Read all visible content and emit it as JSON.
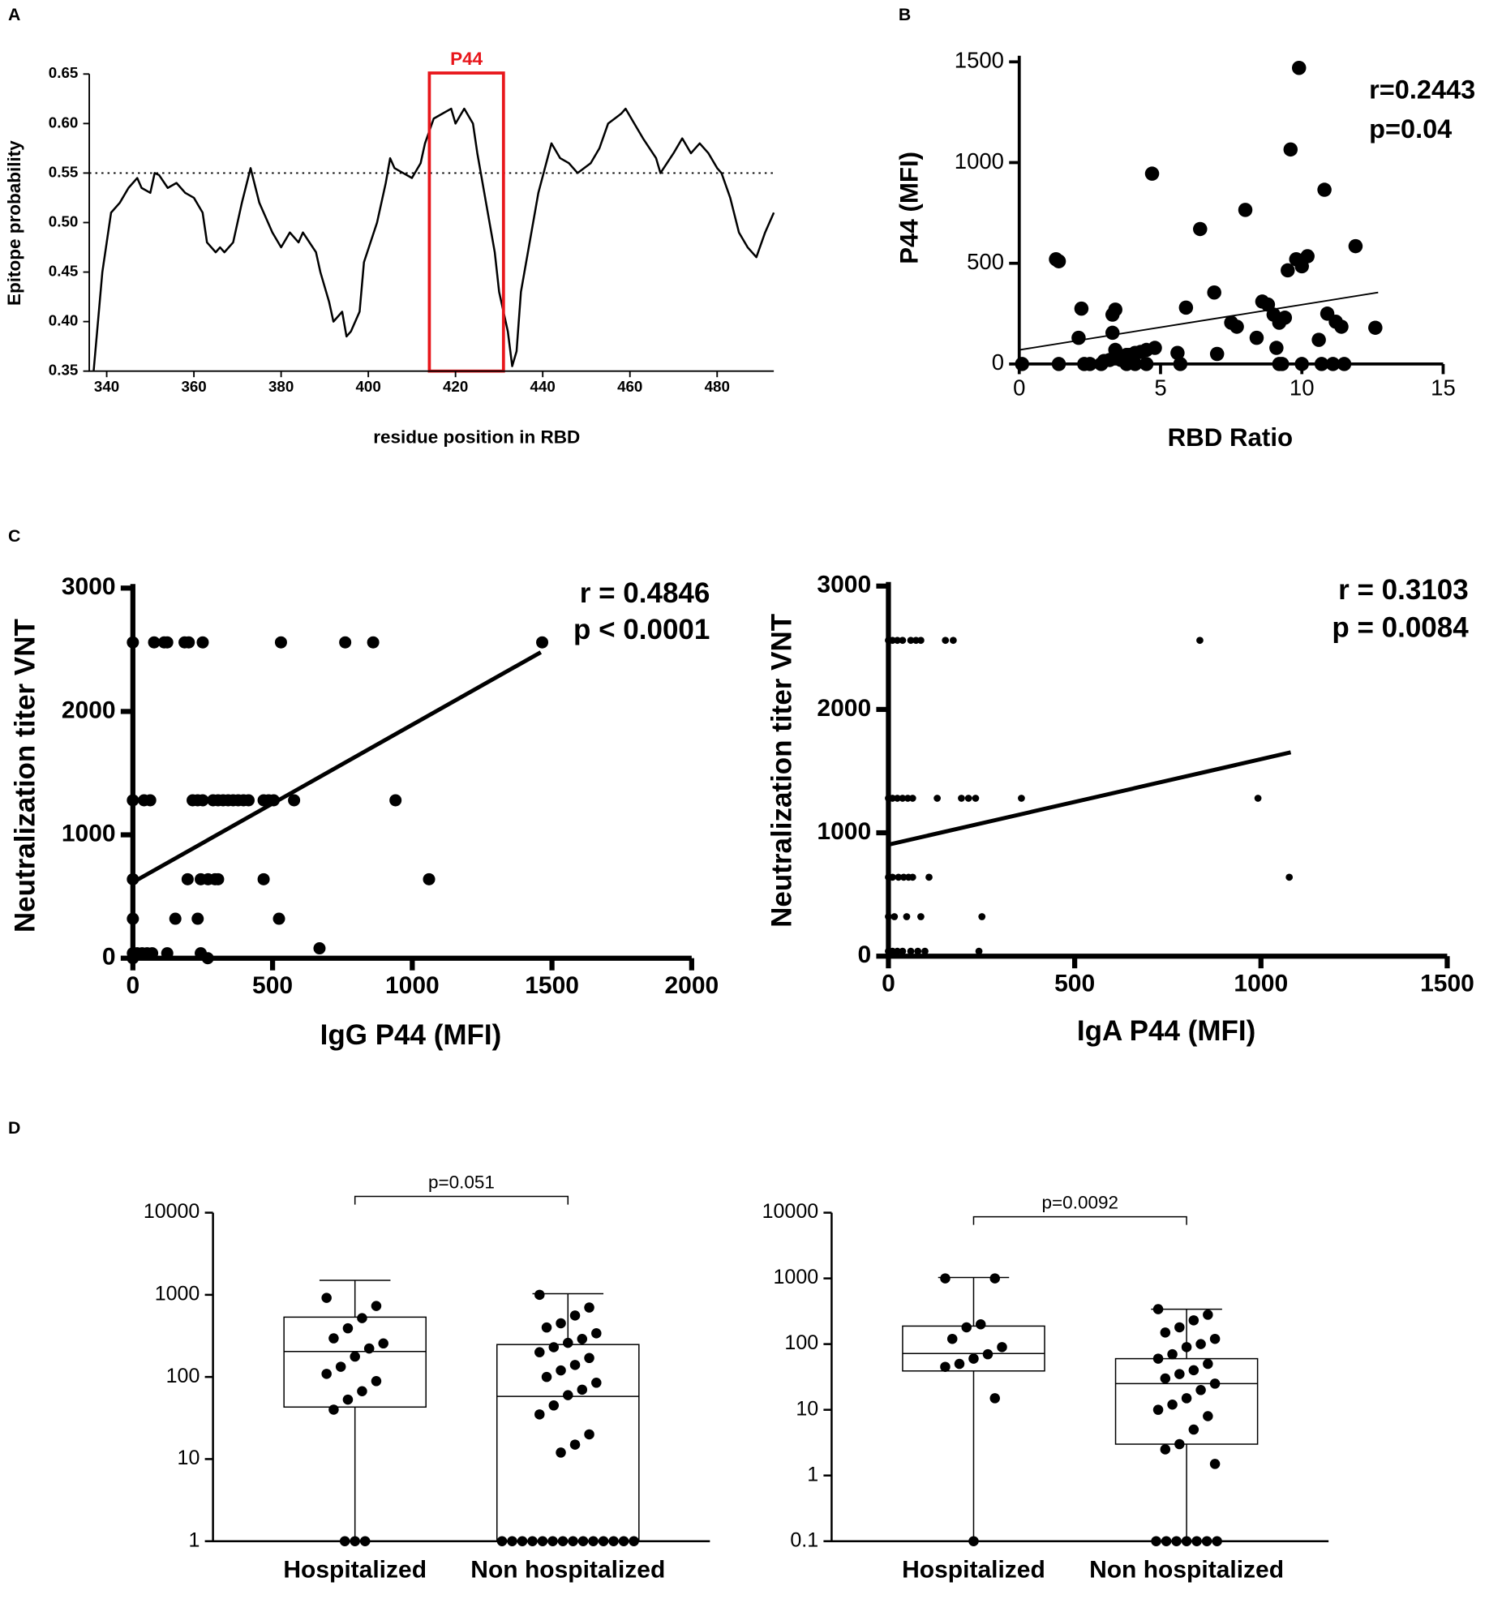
{
  "panel_labels": [
    "A",
    "B",
    "C",
    "D"
  ],
  "chart_data": [
    {
      "type": "line",
      "ylabel": "Epitope probability",
      "xlabel": "residue position in RBD",
      "color": "#000000",
      "x": [
        337,
        339,
        340,
        341,
        343,
        345,
        347,
        348,
        350,
        351,
        352,
        354,
        356,
        358,
        360,
        362,
        363,
        365,
        366,
        367,
        369,
        371,
        373,
        375,
        377,
        378,
        380,
        382,
        384,
        385,
        388,
        389,
        391,
        392,
        394,
        395,
        396,
        398,
        399,
        402,
        404,
        405,
        406,
        408,
        410,
        412,
        413,
        415,
        417,
        419,
        420,
        422,
        424,
        425,
        427,
        429,
        430,
        432,
        433,
        434,
        435,
        437,
        439,
        442,
        444,
        446,
        448,
        451,
        453,
        455,
        458,
        459,
        461,
        463,
        466,
        467,
        470,
        472,
        474,
        476,
        478,
        480,
        481,
        483,
        485,
        487,
        489,
        491,
        493
      ],
      "values": [
        0.35,
        0.45,
        0.48,
        0.51,
        0.52,
        0.535,
        0.545,
        0.535,
        0.53,
        0.55,
        0.548,
        0.535,
        0.54,
        0.53,
        0.525,
        0.51,
        0.48,
        0.47,
        0.475,
        0.47,
        0.48,
        0.52,
        0.555,
        0.52,
        0.5,
        0.49,
        0.475,
        0.49,
        0.48,
        0.49,
        0.47,
        0.45,
        0.42,
        0.4,
        0.41,
        0.385,
        0.39,
        0.41,
        0.46,
        0.5,
        0.54,
        0.565,
        0.555,
        0.55,
        0.545,
        0.56,
        0.58,
        0.605,
        0.61,
        0.615,
        0.6,
        0.615,
        0.6,
        0.57,
        0.52,
        0.47,
        0.43,
        0.39,
        0.355,
        0.37,
        0.43,
        0.48,
        0.53,
        0.58,
        0.565,
        0.56,
        0.55,
        0.56,
        0.575,
        0.6,
        0.61,
        0.615,
        0.6,
        0.585,
        0.565,
        0.55,
        0.57,
        0.585,
        0.57,
        0.58,
        0.57,
        0.555,
        0.55,
        0.525,
        0.49,
        0.475,
        0.465,
        0.49,
        0.51
      ],
      "xlim": [
        336,
        493
      ],
      "xticks": [
        340,
        360,
        380,
        400,
        420,
        440,
        460,
        480
      ],
      "ylim": [
        0.35,
        0.65
      ],
      "yticks": [
        0.35,
        {
          "value": 0.4,
          "label": "0.40"
        },
        0.45,
        {
          "value": 0.5,
          "label": "0.50"
        },
        0.55,
        {
          "value": 0.6,
          "label": "0.60"
        },
        0.65
      ],
      "threshold": 0.55,
      "highlight": {
        "label": "P44",
        "x": [
          414,
          431
        ],
        "color": "#e8161b"
      }
    },
    {
      "type": "scatter",
      "ylabel": "P44 (MFI)",
      "xlabel": "RBD Ratio",
      "color": "#000000",
      "annotations": [
        "r=0.2443",
        "p=0.04"
      ],
      "x": [
        0.1,
        1.3,
        1.4,
        1.4,
        2.1,
        2.2,
        2.3,
        2.5,
        2.9,
        3.0,
        3.2,
        3.3,
        3.4,
        3.3,
        3.4,
        3.6,
        3.8,
        3.9,
        4.1,
        4.3,
        4.5,
        4.8,
        3.8,
        4.1,
        4.5,
        4.7,
        5.6,
        5.7,
        5.9,
        6.4,
        6.9,
        7.0,
        7.5,
        7.7,
        8.0,
        8.4,
        8.6,
        8.8,
        9.0,
        9.1,
        9.2,
        9.3,
        9.2,
        9.4,
        9.5,
        9.6,
        9.8,
        9.9,
        10.0,
        10.0,
        10.2,
        10.6,
        10.7,
        10.8,
        10.9,
        11.1,
        11.5,
        11.2,
        11.4,
        11.9,
        12.6
      ],
      "values": [
        0,
        520,
        510,
        0,
        130,
        275,
        0,
        0,
        0,
        15,
        20,
        245,
        270,
        155,
        70,
        20,
        45,
        45,
        55,
        60,
        70,
        80,
        0,
        0,
        0,
        945,
        55,
        0,
        280,
        670,
        355,
        50,
        205,
        185,
        765,
        130,
        310,
        295,
        245,
        80,
        0,
        0,
        205,
        230,
        465,
        1065,
        520,
        1470,
        0,
        485,
        535,
        120,
        0,
        865,
        250,
        0,
        0,
        210,
        185,
        585,
        180
      ],
      "fit": {
        "x": [
          0,
          12.7
        ],
        "values": [
          70,
          355
        ]
      },
      "xlim": [
        0,
        15
      ],
      "xticks": [
        0,
        5,
        10,
        15
      ],
      "ylim": [
        0,
        1500
      ],
      "yticks": [
        0,
        500,
        1000,
        1500
      ]
    },
    {
      "type": "scatter",
      "ylabel": "Neutralization titer VNT",
      "xlabel": "IgG P44 (MFI)",
      "color": "#000000",
      "annotations": [
        "r = 0.4846",
        "p < 0.0001"
      ],
      "x": [
        0,
        76,
        112,
        123,
        185,
        200,
        250,
        530,
        760,
        860,
        1465,
        0,
        40,
        62,
        214,
        232,
        250,
        287,
        305,
        323,
        341,
        359,
        377,
        396,
        414,
        468,
        486,
        504,
        577,
        940,
        0,
        196,
        243,
        269,
        294,
        305,
        468,
        1060,
        0,
        152,
        232,
        523,
        668,
        0,
        15,
        33,
        51,
        69,
        123,
        243,
        0,
        268
      ],
      "values": [
        2560,
        2560,
        2560,
        2560,
        2560,
        2560,
        2560,
        2560,
        2560,
        2560,
        2560,
        1280,
        1280,
        1280,
        1280,
        1280,
        1280,
        1280,
        1280,
        1280,
        1280,
        1280,
        1280,
        1280,
        1280,
        1280,
        1280,
        1280,
        1280,
        1280,
        640,
        640,
        640,
        640,
        640,
        640,
        640,
        640,
        320,
        320,
        320,
        320,
        80,
        40,
        40,
        40,
        40,
        40,
        40,
        40,
        0,
        0
      ],
      "fit": {
        "x": [
          0,
          1460
        ],
        "values": [
          615,
          2480
        ]
      },
      "xlim": [
        0,
        2000
      ],
      "xticks": [
        0,
        500,
        1000,
        1500,
        2000
      ],
      "ylim": [
        0,
        3000
      ],
      "yticks": [
        0,
        1000,
        2000,
        3000
      ]
    },
    {
      "type": "scatter",
      "ylabel": "Neutralization titer VNT",
      "xlabel": "IgA P44 (MFI)",
      "color": "#000000",
      "annotations": [
        "r = 0.3103",
        "p = 0.0084"
      ],
      "x": [
        0,
        11,
        24,
        38,
        60,
        74,
        87,
        153,
        174,
        836,
        0,
        11,
        24,
        38,
        52,
        65,
        131,
        196,
        215,
        234,
        357,
        992,
        0,
        11,
        27,
        41,
        54,
        65,
        109,
        1076,
        0,
        16,
        49,
        87,
        251,
        0,
        11,
        24,
        38,
        60,
        79,
        98,
        243,
        0
      ],
      "values": [
        2560,
        2560,
        2560,
        2560,
        2560,
        2560,
        2560,
        2560,
        2560,
        2560,
        1280,
        1280,
        1280,
        1280,
        1280,
        1280,
        1280,
        1280,
        1280,
        1280,
        1280,
        1280,
        640,
        640,
        640,
        640,
        640,
        640,
        640,
        640,
        320,
        320,
        320,
        320,
        320,
        40,
        40,
        40,
        40,
        40,
        40,
        40,
        40,
        0
      ],
      "fit": {
        "x": [
          0,
          1080
        ],
        "values": [
          904,
          1652
        ]
      },
      "xlim": [
        0,
        1500
      ],
      "xticks": [
        0,
        500,
        1000,
        1500
      ],
      "ylim": [
        0,
        3000
      ],
      "yticks": [
        0,
        1000,
        2000,
        3000
      ]
    },
    {
      "type": "box",
      "categories": [
        "Hospitalized",
        "Non hospitalized"
      ],
      "comparison": "p=0.051",
      "yscale": "log",
      "ylim": [
        1,
        10000
      ],
      "yticks": [
        1,
        10,
        100,
        1000,
        10000
      ],
      "boxes": [
        {
          "min": 1,
          "q1": 43,
          "median": 204,
          "q3": 535,
          "max": 1500,
          "points": [
            918,
            731,
            520,
            391,
            295,
            256,
            222,
            177,
            133,
            109,
            89,
            67,
            53,
            40,
            1,
            1,
            1
          ]
        },
        {
          "min": 1,
          "q1": 1,
          "median": 58,
          "q3": 248,
          "max": 1030,
          "points": [
            1000,
            700,
            560,
            450,
            400,
            340,
            290,
            260,
            230,
            200,
            170,
            140,
            120,
            100,
            85,
            70,
            60,
            45,
            35,
            20,
            15,
            12,
            1,
            1,
            1,
            1,
            1,
            1,
            1,
            1,
            1,
            1,
            1,
            1,
            1,
            1
          ]
        }
      ]
    },
    {
      "type": "box",
      "categories": [
        "Hospitalized",
        "Non hospitalized"
      ],
      "comparison": "p=0.0092",
      "yscale": "log",
      "ylim": [
        0.1,
        10000
      ],
      "yticks": [
        0.1,
        1,
        10,
        100,
        1000,
        10000
      ],
      "boxes": [
        {
          "min": 0.1,
          "q1": 39,
          "median": 72,
          "q3": 188,
          "max": 1030,
          "points": [
            1000,
            1000,
            200,
            180,
            120,
            90,
            70,
            60,
            50,
            45,
            15,
            0.1
          ]
        },
        {
          "min": 0.1,
          "q1": 3,
          "median": 25,
          "q3": 60,
          "max": 340,
          "points": [
            340,
            280,
            230,
            180,
            150,
            120,
            100,
            90,
            70,
            60,
            50,
            40,
            35,
            30,
            25,
            20,
            15,
            12,
            10,
            8,
            5,
            3,
            2.5,
            1.5,
            0.1,
            0.1,
            0.1,
            0.1,
            0.1,
            0.1,
            0.1
          ]
        }
      ]
    }
  ]
}
